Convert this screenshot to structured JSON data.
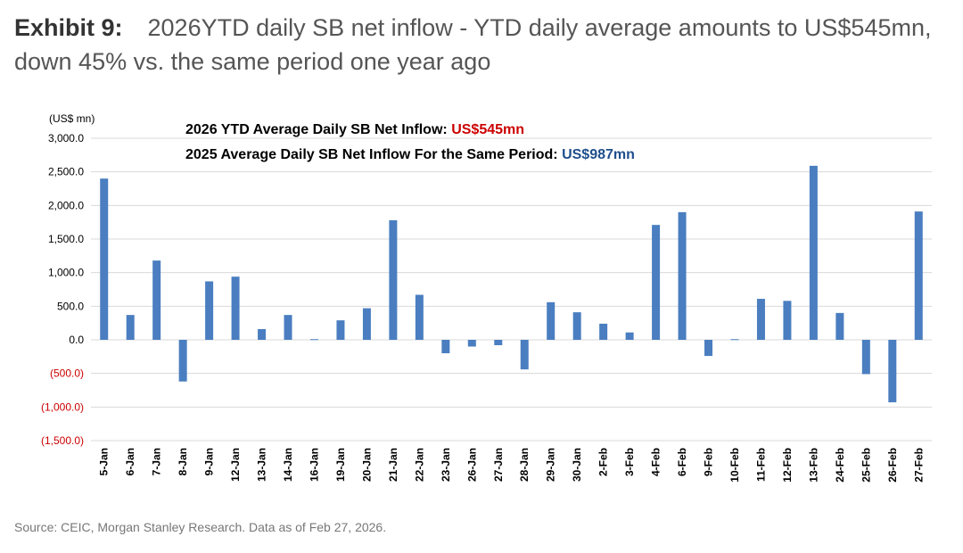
{
  "header": {
    "exhibit_label": "Exhibit 9:",
    "title_text": "2026YTD daily SB net inflow - YTD daily average amounts to US$545mn, down 45% vs. the same period one year ago"
  },
  "annotations": {
    "line1_label": "2026 YTD Average Daily SB Net Inflow:",
    "line1_value": "US$545mn",
    "line1_value_color": "#cc0000",
    "line2_label": "2025 Average Daily SB Net Inflow For the Same Period:",
    "line2_value": "US$987mn",
    "line2_value_color": "#1f4e8c"
  },
  "footer": {
    "source": "Source: CEIC, Morgan Stanley Research. Data as of Feb 27, 2026."
  },
  "colors": {
    "bar": "#4a7ec0",
    "negative_tick": "#cc0000",
    "grid": "#d9d9d9"
  },
  "chart_data": {
    "type": "bar",
    "unit_label": "(US$ mn)",
    "ylim": [
      -1500,
      3000
    ],
    "yticks": [
      3000,
      2500,
      2000,
      1500,
      1000,
      500,
      0,
      -500,
      -1000,
      -1500
    ],
    "ytick_labels": [
      "3,000.0",
      "2,500.0",
      "2,000.0",
      "1,500.0",
      "1,000.0",
      "500.0",
      "0.0",
      "(500.0)",
      "(1,000.0)",
      "(1,500.0)"
    ],
    "grid": true,
    "categories": [
      "5-Jan",
      "6-Jan",
      "7-Jan",
      "8-Jan",
      "9-Jan",
      "12-Jan",
      "13-Jan",
      "14-Jan",
      "16-Jan",
      "19-Jan",
      "20-Jan",
      "21-Jan",
      "22-Jan",
      "23-Jan",
      "26-Jan",
      "27-Jan",
      "28-Jan",
      "29-Jan",
      "30-Jan",
      "2-Feb",
      "3-Feb",
      "4-Feb",
      "6-Feb",
      "9-Feb",
      "10-Feb",
      "11-Feb",
      "12-Feb",
      "13-Feb",
      "24-Feb",
      "25-Feb",
      "26-Feb",
      "27-Feb"
    ],
    "values": [
      2400,
      370,
      1180,
      -620,
      870,
      940,
      160,
      370,
      10,
      290,
      470,
      1780,
      670,
      -200,
      -100,
      -80,
      -440,
      560,
      410,
      240,
      110,
      1710,
      1900,
      -240,
      10,
      610,
      580,
      2590,
      400,
      -510,
      -930,
      1910
    ]
  }
}
